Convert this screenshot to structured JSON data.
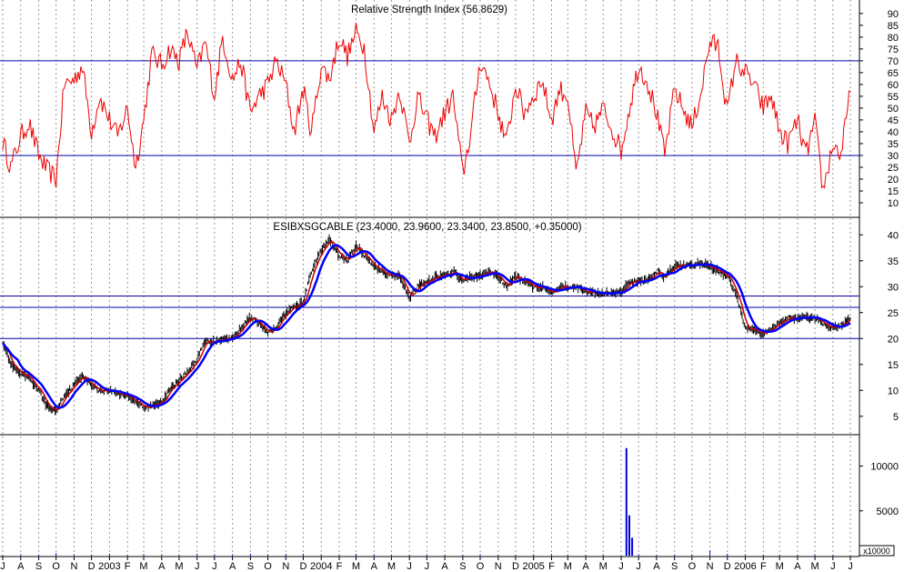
{
  "chart_data": [
    {
      "type": "line",
      "title": "Relative Strength Index (56.8629)",
      "ylim": [
        5,
        93
      ],
      "yticks": [
        10,
        15,
        20,
        25,
        30,
        35,
        40,
        45,
        50,
        55,
        60,
        65,
        70,
        75,
        80,
        85,
        90
      ],
      "reference_lines": [
        30,
        70
      ],
      "grid": "vertical dotted",
      "series": [
        {
          "color": "#ee0000",
          "x": [
            "2002-07-01",
            "2002-07-15",
            "2002-08-01",
            "2002-08-15",
            "2002-09-01",
            "2002-09-15",
            "2002-10-01",
            "2002-10-15",
            "2002-11-01",
            "2002-11-15",
            "2002-12-01",
            "2002-12-15",
            "2003-01-01",
            "2003-01-15",
            "2003-02-01",
            "2003-02-15",
            "2003-03-01",
            "2003-03-15",
            "2003-04-01",
            "2003-04-15",
            "2003-05-01",
            "2003-05-15",
            "2003-06-01",
            "2003-06-15",
            "2003-07-01",
            "2003-07-15",
            "2003-08-01",
            "2003-08-15",
            "2003-09-01",
            "2003-09-15",
            "2003-10-01",
            "2003-10-15",
            "2003-11-01",
            "2003-11-15",
            "2003-12-01",
            "2003-12-15",
            "2004-01-01",
            "2004-01-15",
            "2004-02-01",
            "2004-02-15",
            "2004-03-01",
            "2004-03-15",
            "2004-04-01",
            "2004-04-15",
            "2004-05-01",
            "2004-05-15",
            "2004-06-01",
            "2004-06-15",
            "2004-07-01",
            "2004-07-15",
            "2004-08-01",
            "2004-08-15",
            "2004-09-01",
            "2004-09-15",
            "2004-10-01",
            "2004-10-15",
            "2004-11-01",
            "2004-11-15",
            "2004-12-01",
            "2004-12-15",
            "2005-01-01",
            "2005-01-15",
            "2005-02-01",
            "2005-02-15",
            "2005-03-01",
            "2005-03-15",
            "2005-04-01",
            "2005-04-15",
            "2005-05-01",
            "2005-05-15",
            "2005-06-01",
            "2005-06-15",
            "2005-07-01",
            "2005-07-15",
            "2005-08-01",
            "2005-08-15",
            "2005-09-01",
            "2005-09-15",
            "2005-10-01",
            "2005-10-15",
            "2005-11-01",
            "2005-11-15",
            "2005-12-01",
            "2005-12-15",
            "2006-01-01",
            "2006-01-15",
            "2006-02-01",
            "2006-02-15",
            "2006-03-01",
            "2006-03-15",
            "2006-04-01",
            "2006-04-15",
            "2006-05-01",
            "2006-05-15",
            "2006-06-01",
            "2006-06-15",
            "2006-07-01"
          ],
          "values": [
            36,
            25,
            38,
            44,
            30,
            24,
            20,
            60,
            62,
            68,
            40,
            55,
            45,
            38,
            50,
            25,
            45,
            73,
            68,
            75,
            70,
            82,
            66,
            78,
            55,
            80,
            62,
            70,
            48,
            55,
            60,
            70,
            60,
            40,
            58,
            40,
            68,
            62,
            80,
            72,
            82,
            76,
            40,
            55,
            45,
            58,
            35,
            55,
            45,
            38,
            48,
            55,
            22,
            40,
            70,
            62,
            48,
            35,
            60,
            48,
            55,
            62,
            45,
            58,
            55,
            22,
            48,
            42,
            50,
            42,
            32,
            50,
            68,
            62,
            48,
            30,
            58,
            50,
            42,
            55,
            78,
            76,
            48,
            70,
            65,
            60,
            50,
            55,
            40,
            35,
            45,
            30,
            44,
            15,
            35,
            30,
            57
          ]
        }
      ]
    },
    {
      "type": "line",
      "title": "ESIBXSGCABLE (23.4000, 23.9600, 23.3400, 23.8500, +0.35000)",
      "ylim": [
        1.8,
        42.5
      ],
      "yticks": [
        5,
        10,
        15,
        20,
        25,
        30,
        35,
        40
      ],
      "reference_lines": [
        20,
        26,
        28.2
      ],
      "grid": "vertical dotted",
      "series": [
        {
          "color": "#000000",
          "x": [
            "2002-07-01",
            "2002-07-15",
            "2002-08-01",
            "2002-08-15",
            "2002-09-01",
            "2002-09-15",
            "2002-10-01",
            "2002-10-15",
            "2002-11-01",
            "2002-11-15",
            "2002-12-01",
            "2002-12-15",
            "2003-01-01",
            "2003-01-15",
            "2003-02-01",
            "2003-02-15",
            "2003-03-01",
            "2003-03-15",
            "2003-04-01",
            "2003-04-15",
            "2003-05-01",
            "2003-05-15",
            "2003-06-01",
            "2003-06-15",
            "2003-07-01",
            "2003-07-15",
            "2003-08-01",
            "2003-08-15",
            "2003-09-01",
            "2003-09-15",
            "2003-10-01",
            "2003-10-15",
            "2003-11-01",
            "2003-11-15",
            "2003-12-01",
            "2003-12-15",
            "2004-01-01",
            "2004-01-15",
            "2004-02-01",
            "2004-02-15",
            "2004-03-01",
            "2004-03-15",
            "2004-04-01",
            "2004-04-15",
            "2004-05-01",
            "2004-05-15",
            "2004-06-01",
            "2004-06-15",
            "2004-07-01",
            "2004-07-15",
            "2004-08-01",
            "2004-08-15",
            "2004-09-01",
            "2004-09-15",
            "2004-10-01",
            "2004-10-15",
            "2004-11-01",
            "2004-11-15",
            "2004-12-01",
            "2004-12-15",
            "2005-01-01",
            "2005-01-15",
            "2005-02-01",
            "2005-02-15",
            "2005-03-01",
            "2005-03-15",
            "2005-04-01",
            "2005-04-15",
            "2005-05-01",
            "2005-05-15",
            "2005-06-01",
            "2005-06-15",
            "2005-07-01",
            "2005-07-15",
            "2005-08-01",
            "2005-08-15",
            "2005-09-01",
            "2005-09-15",
            "2005-10-01",
            "2005-10-15",
            "2005-11-01",
            "2005-11-15",
            "2005-12-01",
            "2005-12-15",
            "2006-01-01",
            "2006-01-15",
            "2006-02-01",
            "2006-02-15",
            "2006-03-01",
            "2006-03-15",
            "2006-04-01",
            "2006-04-15",
            "2006-05-01",
            "2006-05-15",
            "2006-06-01",
            "2006-06-15",
            "2006-07-01"
          ],
          "values": [
            19.5,
            15,
            13,
            12.5,
            10,
            7,
            6,
            9,
            11,
            13,
            11,
            10,
            10,
            9.5,
            9,
            8,
            6.5,
            7,
            8,
            10,
            12,
            13.5,
            16,
            19.5,
            19.5,
            20,
            20,
            22,
            24,
            23,
            21,
            22,
            25,
            26,
            27,
            33,
            37,
            39,
            36,
            35,
            38,
            36,
            34,
            33,
            32,
            32,
            28,
            30,
            31,
            32,
            32,
            33,
            31,
            32,
            32,
            33,
            32,
            30,
            32,
            31,
            30,
            30,
            29,
            30,
            30,
            30,
            29,
            29,
            28.5,
            29,
            29,
            31,
            31,
            31,
            33,
            32,
            34,
            34,
            34,
            34.5,
            34,
            33,
            32,
            29,
            22,
            22,
            21,
            22,
            23,
            24,
            24,
            24,
            24,
            23,
            22,
            22.5,
            23.85
          ]
        }
      ]
    },
    {
      "type": "bar",
      "title": "",
      "ylim": [
        0,
        13200
      ],
      "yticks": [
        5000,
        10000
      ],
      "unit_label": "x10000",
      "series": [
        {
          "color": "#0000dd",
          "x": [
            "2002-07-01",
            "2002-08-01",
            "2002-09-01",
            "2002-10-01",
            "2002-11-01",
            "2002-12-01",
            "2003-01-01",
            "2003-02-01",
            "2003-03-01",
            "2003-04-01",
            "2003-05-01",
            "2003-06-01",
            "2003-07-01",
            "2003-08-01",
            "2003-09-01",
            "2003-10-01",
            "2003-11-01",
            "2003-12-01",
            "2004-01-01",
            "2004-02-01",
            "2004-03-01",
            "2004-04-01",
            "2004-05-01",
            "2004-06-01",
            "2004-07-01",
            "2004-08-01",
            "2004-09-01",
            "2004-10-01",
            "2004-11-01",
            "2004-12-01",
            "2005-01-01",
            "2005-02-01",
            "2005-03-01",
            "2005-04-01",
            "2005-05-01",
            "2005-06-10",
            "2005-06-15",
            "2005-06-20",
            "2005-07-01",
            "2005-08-01",
            "2005-09-01",
            "2005-10-01",
            "2005-11-01",
            "2005-12-01",
            "2006-01-01",
            "2006-02-01",
            "2006-03-01",
            "2006-04-01",
            "2006-05-01",
            "2006-06-01"
          ],
          "values": [
            100,
            150,
            120,
            300,
            150,
            120,
            200,
            100,
            180,
            150,
            120,
            200,
            150,
            150,
            200,
            150,
            180,
            200,
            150,
            120,
            200,
            150,
            120,
            100,
            150,
            120,
            100,
            150,
            120,
            100,
            150,
            180,
            120,
            100,
            150,
            12000,
            4500,
            2000,
            150,
            100,
            120,
            150,
            600,
            200,
            150,
            120,
            100,
            120,
            150,
            100
          ]
        }
      ]
    }
  ],
  "x_axis": {
    "tick_labels": [
      "J",
      "A",
      "S",
      "O",
      "N",
      "D",
      "2003",
      "F",
      "M",
      "A",
      "M",
      "J",
      "J",
      "A",
      "S",
      "O",
      "N",
      "D",
      "2004",
      "F",
      "M",
      "A",
      "M",
      "J",
      "J",
      "A",
      "S",
      "O",
      "N",
      "D",
      "2005",
      "F",
      "M",
      "A",
      "M",
      "J",
      "J",
      "A",
      "S",
      "O",
      "N",
      "D",
      "2006",
      "F",
      "M",
      "A",
      "M",
      "J",
      "J"
    ]
  },
  "colors": {
    "rsi_line": "#ee0000",
    "price_bars": "#000000",
    "ma_fast": "#cc0000",
    "ma_slow": "#0000ff",
    "ref_lines": "#0000aa",
    "volume": "#0000dd",
    "grid": "#9a9a9a",
    "background": "#ffffff"
  }
}
